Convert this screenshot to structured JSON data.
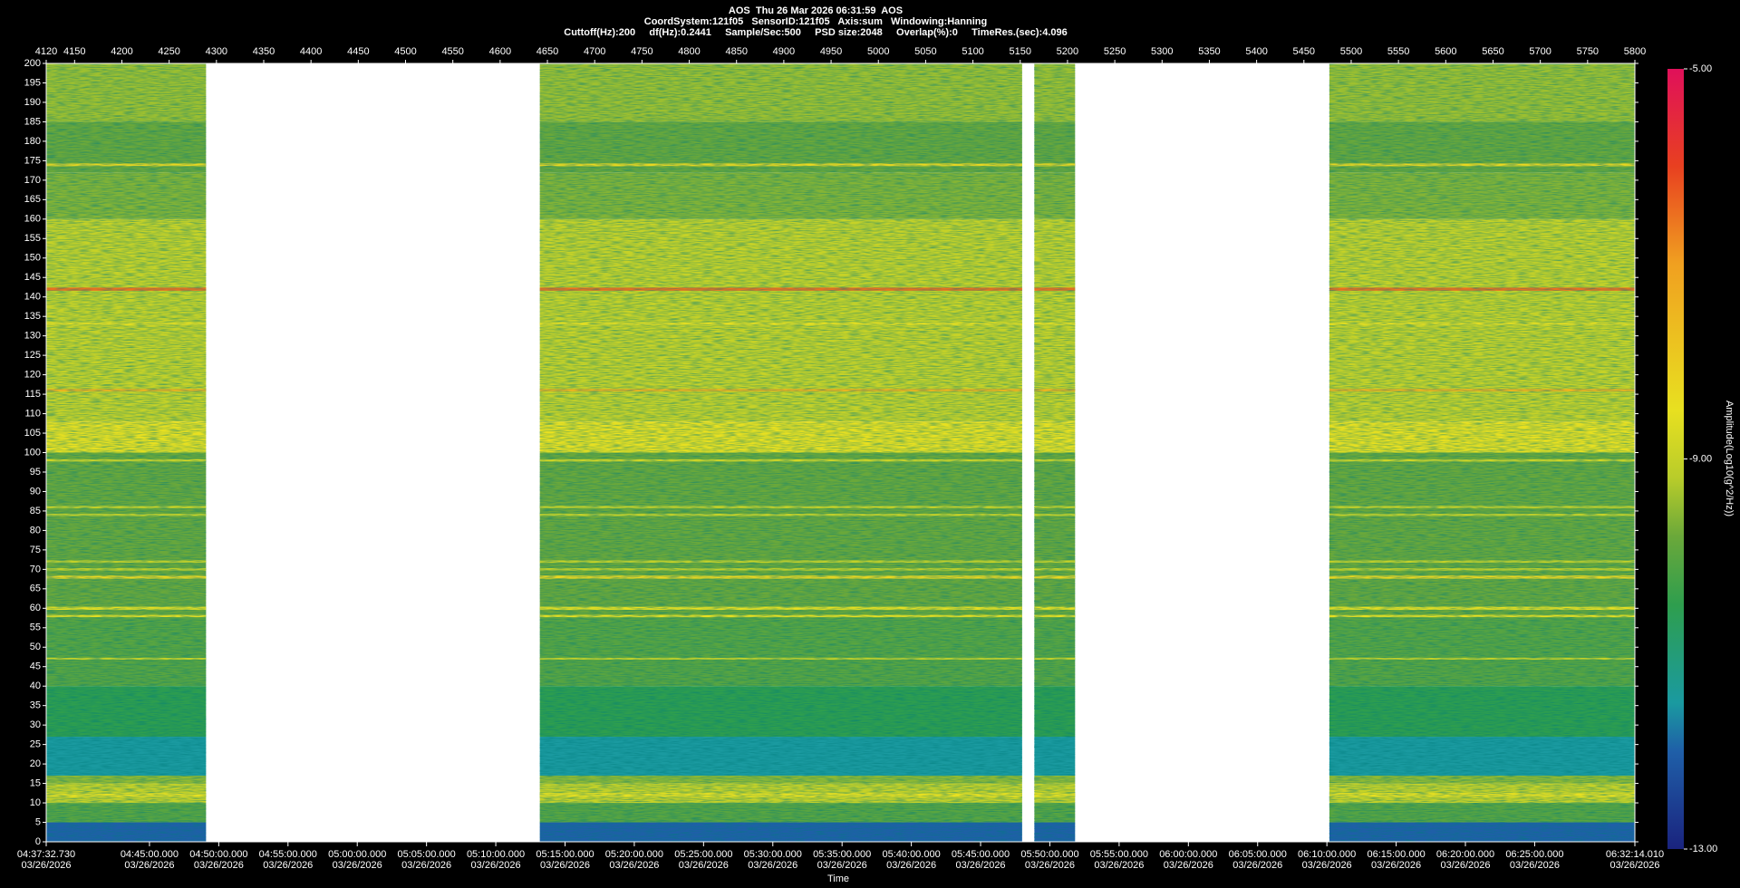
{
  "chart_data": {
    "type": "spectrogram",
    "title_lines": [
      "AOS  Thu 26 Mar 2026 06:31:59  AOS",
      "CoordSystem:121f05   SensorID:121f05   Axis:sum   Windowing:Hanning",
      "Cuttoff(Hz):200     df(Hz):0.2441     Sample/Sec:500     PSD size:2048     Overlap(%):0     TimeRes.(sec):4.096"
    ],
    "x_label": "Time",
    "colorbar_label": "Amplitude(Log10(g^2/Hz))",
    "xlim": [
      4120,
      5800
    ],
    "xticks": [
      4120,
      4150,
      4200,
      4250,
      4300,
      4350,
      4400,
      4450,
      4500,
      4550,
      4600,
      4650,
      4700,
      4750,
      4800,
      4850,
      4900,
      4950,
      5000,
      5050,
      5100,
      5150,
      5200,
      5250,
      5300,
      5350,
      5400,
      5450,
      5500,
      5550,
      5600,
      5650,
      5700,
      5750,
      5800
    ],
    "ylim": [
      0,
      200
    ],
    "yticks": [
      0,
      5,
      10,
      15,
      20,
      25,
      30,
      35,
      40,
      45,
      50,
      55,
      60,
      65,
      70,
      75,
      80,
      85,
      90,
      95,
      100,
      105,
      110,
      115,
      120,
      125,
      130,
      135,
      140,
      145,
      150,
      155,
      160,
      165,
      170,
      175,
      180,
      185,
      190,
      195,
      200
    ],
    "x2ticks": [
      {
        "value": 4120,
        "label": "04:37:32.730"
      },
      {
        "value": 4229.2,
        "label": "04:45:00.000"
      },
      {
        "value": 4302.44,
        "label": "04:50:00.000"
      },
      {
        "value": 4375.68,
        "label": "04:55:00.000"
      },
      {
        "value": 4448.92,
        "label": "05:00:00.000"
      },
      {
        "value": 4522.17,
        "label": "05:05:00.000"
      },
      {
        "value": 4595.41,
        "label": "05:10:00.000"
      },
      {
        "value": 4668.65,
        "label": "05:15:00.000"
      },
      {
        "value": 4741.89,
        "label": "05:20:00.000"
      },
      {
        "value": 4815.13,
        "label": "05:25:00.000"
      },
      {
        "value": 4888.38,
        "label": "05:30:00.000"
      },
      {
        "value": 4961.62,
        "label": "05:35:00.000"
      },
      {
        "value": 5034.86,
        "label": "05:40:00.000"
      },
      {
        "value": 5108.1,
        "label": "05:45:00.000"
      },
      {
        "value": 5181.34,
        "label": "05:50:00.000"
      },
      {
        "value": 5254.59,
        "label": "05:55:00.000"
      },
      {
        "value": 5327.83,
        "label": "06:00:00.000"
      },
      {
        "value": 5401.07,
        "label": "06:05:00.000"
      },
      {
        "value": 5474.31,
        "label": "06:10:00.000"
      },
      {
        "value": 5547.55,
        "label": "06:15:00.000"
      },
      {
        "value": 5620.79,
        "label": "06:20:00.000"
      },
      {
        "value": 5694.04,
        "label": "06:25:00.000"
      },
      {
        "value": 5800,
        "label": "06:32:14.010"
      }
    ],
    "date": "03/26/2026",
    "clim": [
      -13,
      -5
    ],
    "cticks": [
      {
        "value": -5,
        "label": "-5.00"
      },
      {
        "value": -9,
        "label": "-9.00"
      },
      {
        "value": -13,
        "label": "-13.00"
      }
    ],
    "colormap": [
      {
        "value": -13,
        "color": "#1a237e"
      },
      {
        "value": -12,
        "color": "#1f5fa8"
      },
      {
        "value": -11.5,
        "color": "#1a9aa0"
      },
      {
        "value": -10.5,
        "color": "#2e9e4e"
      },
      {
        "value": -9.8,
        "color": "#6aa83a"
      },
      {
        "value": -9.2,
        "color": "#b8cc2a"
      },
      {
        "value": -8.5,
        "color": "#e8e020"
      },
      {
        "value": -7,
        "color": "#f0a020"
      },
      {
        "value": -6,
        "color": "#e84020"
      },
      {
        "value": -5,
        "color": "#e0105a"
      }
    ],
    "data_segments": [
      [
        4120,
        4289
      ],
      [
        4642,
        5152
      ],
      [
        5165,
        5208
      ],
      [
        5477,
        5800
      ]
    ],
    "bands": [
      {
        "lo": 0,
        "hi": 5,
        "amplitude": -12
      },
      {
        "lo": 5,
        "hi": 10,
        "amplitude": -10
      },
      {
        "lo": 10,
        "hi": 15,
        "amplitude": -9
      },
      {
        "lo": 15,
        "hi": 17,
        "amplitude": -9.5
      },
      {
        "lo": 17,
        "hi": 27,
        "amplitude": -11.5
      },
      {
        "lo": 27,
        "hi": 40,
        "amplitude": -10.5
      },
      {
        "lo": 40,
        "hi": 58,
        "amplitude": -10
      },
      {
        "lo": 58,
        "hi": 100,
        "amplitude": -9.8
      },
      {
        "lo": 100,
        "hi": 108,
        "amplitude": -8.5
      },
      {
        "lo": 108,
        "hi": 160,
        "amplitude": -9
      },
      {
        "lo": 160,
        "hi": 172,
        "amplitude": -9.6
      },
      {
        "lo": 172,
        "hi": 185,
        "amplitude": -9.8
      },
      {
        "lo": 185,
        "hi": 200,
        "amplitude": -9.4
      },
      {
        "lo": 173.6,
        "hi": 174.3,
        "amplitude": -8.3
      },
      {
        "lo": 141.6,
        "hi": 142.4,
        "amplitude": -6.5
      },
      {
        "lo": 132.8,
        "hi": 133.4,
        "amplitude": -8.5
      },
      {
        "lo": 115.7,
        "hi": 116.4,
        "amplitude": -7.5
      },
      {
        "lo": 97.7,
        "hi": 98.3,
        "amplitude": -8.8
      },
      {
        "lo": 85.7,
        "hi": 86.3,
        "amplitude": -9
      },
      {
        "lo": 83.7,
        "hi": 84.3,
        "amplitude": -9
      },
      {
        "lo": 71.7,
        "hi": 72.3,
        "amplitude": -9
      },
      {
        "lo": 69.7,
        "hi": 70.3,
        "amplitude": -9
      },
      {
        "lo": 67.6,
        "hi": 68.4,
        "amplitude": -8.3
      },
      {
        "lo": 59.6,
        "hi": 60.4,
        "amplitude": -8.5
      },
      {
        "lo": 57.7,
        "hi": 58.3,
        "amplitude": -8.5
      },
      {
        "lo": 46.8,
        "hi": 47.3,
        "amplitude": -9
      },
      {
        "lo": 11.5,
        "hi": 12.5,
        "amplitude": -8.5
      }
    ]
  }
}
